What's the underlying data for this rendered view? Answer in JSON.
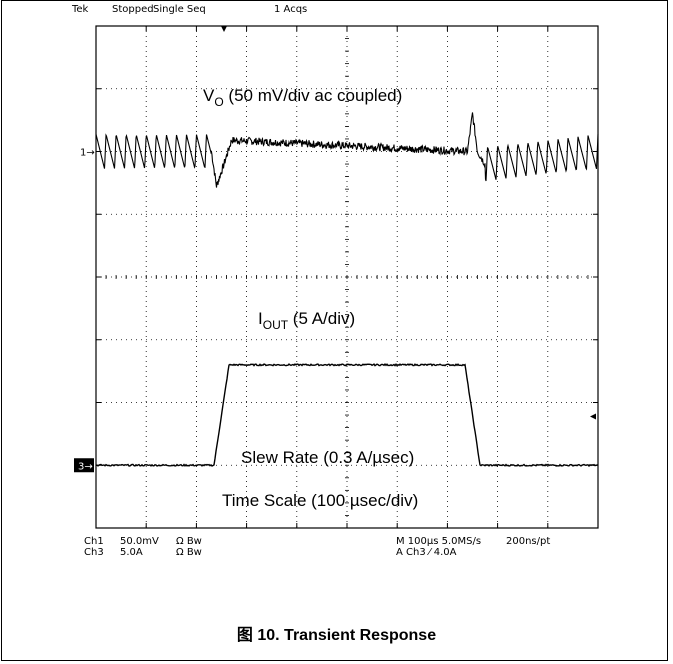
{
  "header": {
    "brand": "Tek",
    "state": "Stopped",
    "mode": "Single Seq",
    "acqs": "1 Acqs"
  },
  "footer": {
    "ch1_name": "Ch1",
    "ch1_scale": "50.0mV",
    "ch1_flags": "Ω  Bw",
    "ch3_name": "Ch3",
    "ch3_scale": "5.0A",
    "ch3_flags": "Ω  Bw",
    "timebase": "M 100µs 5.0MS/s",
    "record": "200ns/pt",
    "trigger": "A  Ch3  ⁄  4.0A"
  },
  "markers": {
    "ch1": "1",
    "ch3": "3"
  },
  "caption": {
    "prefix": "图",
    "text": "10. Transient Response"
  },
  "chart_data": {
    "type": "line",
    "grid": true,
    "x_divisions": 10,
    "y_divisions": 8,
    "annotations": {
      "vo_main": "V",
      "vo_sub": "O",
      "vo_rest": " (50 mV/div ac coupled)",
      "iout_main": "I",
      "iout_sub": "OUT",
      "iout_rest": " (5 A/div)",
      "slew": "Slew Rate (0.3 A/µsec)",
      "timescale": "Time Scale (100 µsec/div)"
    },
    "series": [
      {
        "name": "V",
        "unit_div": "50 mV/div",
        "x_div": [
          0,
          1.5,
          2.3,
          2.4,
          2.55,
          2.7,
          7.4,
          7.5,
          7.6,
          7.75,
          10
        ],
        "y_div": [
          0,
          0,
          0,
          -0.55,
          -0.2,
          0.18,
          0,
          0.6,
          0,
          -0.2,
          0
        ],
        "ripple_pp_div": 0.55,
        "ripple_period_div": 0.2
      },
      {
        "name": "I",
        "unit_div": "5 A/div",
        "x_div": [
          0,
          2.35,
          2.65,
          7.35,
          7.65,
          10
        ],
        "y_div": [
          0,
          0,
          1.6,
          1.6,
          0,
          0
        ]
      }
    ]
  }
}
